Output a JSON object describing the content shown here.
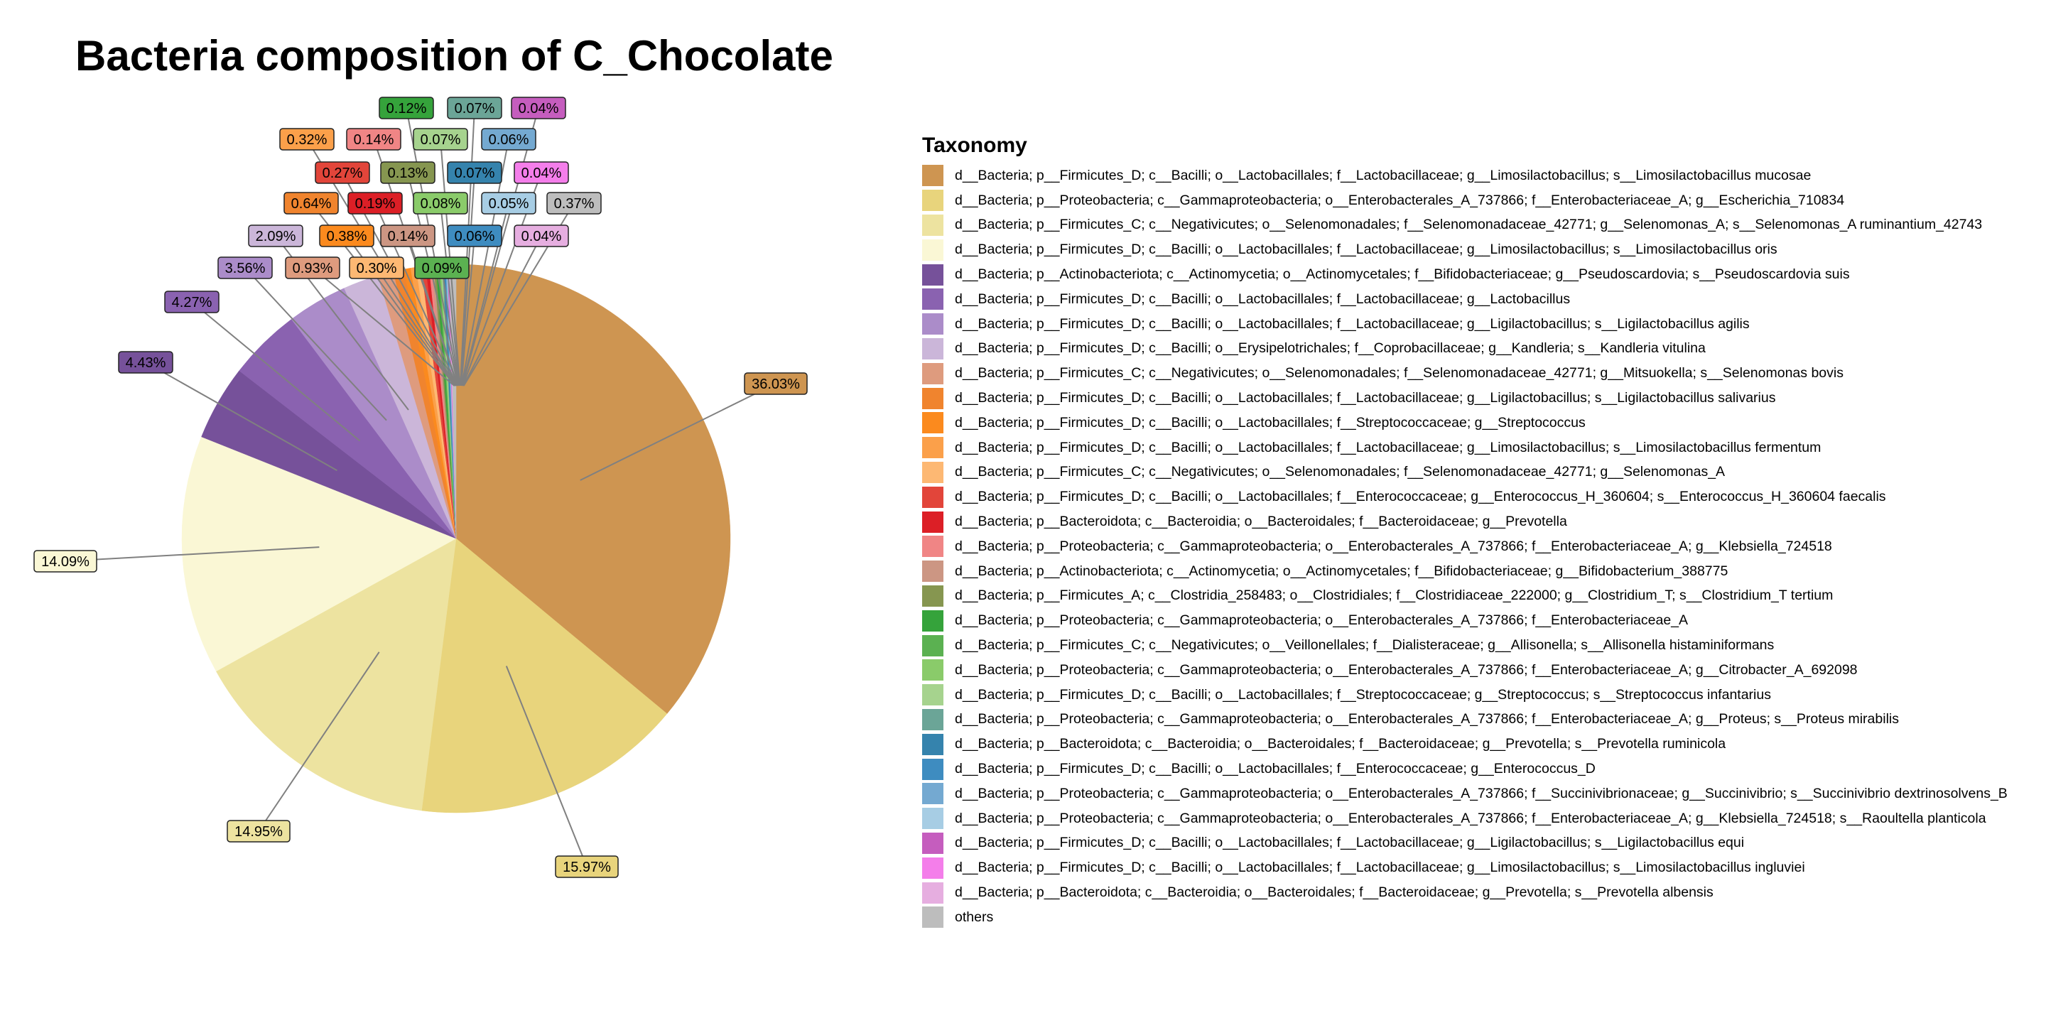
{
  "chart_data": {
    "type": "pie",
    "title": "Bacteria composition of C_Chocolate",
    "legend_title": "Taxonomy",
    "legend_position": "right",
    "slices": [
      {
        "label": "d__Bacteria; p__Firmicutes_D; c__Bacilli; o__Lactobacillales; f__Lactobacillaceae; g__Limosilactobacillus; s__Limosilactobacillus mucosae",
        "value": 36.03,
        "text": "36.03%",
        "color": "#CE9551"
      },
      {
        "label": "d__Bacteria; p__Proteobacteria; c__Gammaproteobacteria; o__Enterobacterales_A_737866; f__Enterobacteriaceae_A; g__Escherichia_710834",
        "value": 15.97,
        "text": "15.97%",
        "color": "#E8D47C"
      },
      {
        "label": "d__Bacteria; p__Firmicutes_C; c__Negativicutes; o__Selenomonadales; f__Selenomonadaceae_42771; g__Selenomonas_A; s__Selenomonas_A ruminantium_42743",
        "value": 14.95,
        "text": "14.95%",
        "color": "#EDE3A0"
      },
      {
        "label": "d__Bacteria; p__Firmicutes_D; c__Bacilli; o__Lactobacillales; f__Lactobacillaceae; g__Limosilactobacillus; s__Limosilactobacillus oris",
        "value": 14.09,
        "text": "14.09%",
        "color": "#FAF7D5"
      },
      {
        "label": "d__Bacteria; p__Actinobacteriota; c__Actinomycetia; o__Actinomycetales; f__Bifidobacteriaceae; g__Pseudoscardovia; s__Pseudoscardovia suis",
        "value": 4.43,
        "text": "4.43%",
        "color": "#76519A"
      },
      {
        "label": "d__Bacteria; p__Firmicutes_D; c__Bacilli; o__Lactobacillales; f__Lactobacillaceae; g__Lactobacillus",
        "value": 4.27,
        "text": "4.27%",
        "color": "#8A62B0"
      },
      {
        "label": "d__Bacteria; p__Firmicutes_D; c__Bacilli; o__Lactobacillales; f__Lactobacillaceae; g__Ligilactobacillus; s__Ligilactobacillus agilis",
        "value": 3.56,
        "text": "3.56%",
        "color": "#AB8CC9"
      },
      {
        "label": "d__Bacteria; p__Firmicutes_D; c__Bacilli; o__Erysipelotrichales; f__Coprobacillaceae; g__Kandleria; s__Kandleria vitulina",
        "value": 2.09,
        "text": "2.09%",
        "color": "#CBB6D9"
      },
      {
        "label": "d__Bacteria; p__Firmicutes_C; c__Negativicutes; o__Selenomonadales; f__Selenomonadaceae_42771; g__Mitsuokella; s__Selenomonas bovis",
        "value": 0.93,
        "text": "0.93%",
        "color": "#DE9B7E"
      },
      {
        "label": "d__Bacteria; p__Firmicutes_D; c__Bacilli; o__Lactobacillales; f__Lactobacillaceae; g__Ligilactobacillus; s__Ligilactobacillus salivarius",
        "value": 0.64,
        "text": "0.64%",
        "color": "#F0842E"
      },
      {
        "label": "d__Bacteria; p__Firmicutes_D; c__Bacilli; o__Lactobacillales; f__Streptococcaceae; g__Streptococcus",
        "value": 0.38,
        "text": "0.38%",
        "color": "#FB8A1E"
      },
      {
        "label": "d__Bacteria; p__Firmicutes_D; c__Bacilli; o__Lactobacillales; f__Lactobacillaceae; g__Limosilactobacillus; s__Limosilactobacillus fermentum",
        "value": 0.32,
        "text": "0.32%",
        "color": "#FBA04A"
      },
      {
        "label": "d__Bacteria; p__Firmicutes_C; c__Negativicutes; o__Selenomonadales; f__Selenomonadaceae_42771; g__Selenomonas_A",
        "value": 0.3,
        "text": "0.30%",
        "color": "#FDB873"
      },
      {
        "label": "d__Bacteria; p__Firmicutes_D; c__Bacilli; o__Lactobacillales; f__Enterococcaceae; g__Enterococcus_H_360604; s__Enterococcus_H_360604 faecalis",
        "value": 0.27,
        "text": "0.27%",
        "color": "#E2453A"
      },
      {
        "label": "d__Bacteria; p__Bacteroidota; c__Bacteroidia; o__Bacteroidales; f__Bacteroidaceae; g__Prevotella",
        "value": 0.19,
        "text": "0.19%",
        "color": "#DC1F26"
      },
      {
        "label": "d__Bacteria; p__Proteobacteria; c__Gammaproteobacteria; o__Enterobacterales_A_737866; f__Enterobacteriaceae_A; g__Klebsiella_724518",
        "value": 0.14,
        "text": "0.14%",
        "color": "#F08585"
      },
      {
        "label": "d__Bacteria; p__Actinobacteriota; c__Actinomycetia; o__Actinomycetales; f__Bifidobacteriaceae; g__Bifidobacterium_388775",
        "value": 0.14,
        "text": "0.14%",
        "color": "#CC9683"
      },
      {
        "label": "d__Bacteria; p__Firmicutes_A; c__Clostridia_258483; o__Clostridiales; f__Clostridiaceae_222000; g__Clostridium_T; s__Clostridium_T tertium",
        "value": 0.13,
        "text": "0.13%",
        "color": "#869650"
      },
      {
        "label": "d__Bacteria; p__Proteobacteria; c__Gammaproteobacteria; o__Enterobacterales_A_737866; f__Enterobacteriaceae_A",
        "value": 0.12,
        "text": "0.12%",
        "color": "#35A33B"
      },
      {
        "label": "d__Bacteria; p__Firmicutes_C; c__Negativicutes; o__Veillonellales; f__Dialisteraceae; g__Allisonella; s__Allisonella histaminiformans",
        "value": 0.09,
        "text": "0.09%",
        "color": "#5BB151"
      },
      {
        "label": "d__Bacteria; p__Proteobacteria; c__Gammaproteobacteria; o__Enterobacterales_A_737866; f__Enterobacteriaceae_A; g__Citrobacter_A_692098",
        "value": 0.08,
        "text": "0.08%",
        "color": "#8ACB6A"
      },
      {
        "label": "d__Bacteria; p__Firmicutes_D; c__Bacilli; o__Lactobacillales; f__Streptococcaceae; g__Streptococcus; s__Streptococcus infantarius",
        "value": 0.07,
        "text": "0.07%",
        "color": "#A6D38E"
      },
      {
        "label": "d__Bacteria; p__Proteobacteria; c__Gammaproteobacteria; o__Enterobacterales_A_737866; f__Enterobacteriaceae_A; g__Proteus; s__Proteus mirabilis",
        "value": 0.07,
        "text": "0.07%",
        "color": "#6BA597"
      },
      {
        "label": "d__Bacteria; p__Bacteroidota; c__Bacteroidia; o__Bacteroidales; f__Bacteroidaceae; g__Prevotella; s__Prevotella ruminicola",
        "value": 0.07,
        "text": "0.07%",
        "color": "#3583AD"
      },
      {
        "label": "d__Bacteria; p__Firmicutes_D; c__Bacilli; o__Lactobacillales; f__Enterococcaceae; g__Enterococcus_D",
        "value": 0.06,
        "text": "0.06%",
        "color": "#3E8CC0"
      },
      {
        "label": "d__Bacteria; p__Proteobacteria; c__Gammaproteobacteria; o__Enterobacterales_A_737866; f__Succinivibrionaceae; g__Succinivibrio; s__Succinivibrio dextrinosolvens_B",
        "value": 0.06,
        "text": "0.06%",
        "color": "#74A9D1"
      },
      {
        "label": "d__Bacteria; p__Proteobacteria; c__Gammaproteobacteria; o__Enterobacterales_A_737866; f__Enterobacteriaceae_A; g__Klebsiella_724518; s__Raoultella planticola",
        "value": 0.05,
        "text": "0.05%",
        "color": "#A7CDE4"
      },
      {
        "label": "d__Bacteria; p__Firmicutes_D; c__Bacilli; o__Lactobacillales; f__Lactobacillaceae; g__Ligilactobacillus; s__Ligilactobacillus equi",
        "value": 0.04,
        "text": "0.04%",
        "color": "#C55DBE"
      },
      {
        "label": "d__Bacteria; p__Firmicutes_D; c__Bacilli; o__Lactobacillales; f__Lactobacillaceae; g__Limosilactobacillus; s__Limosilactobacillus ingluviei",
        "value": 0.04,
        "text": "0.04%",
        "color": "#F47EEA"
      },
      {
        "label": "d__Bacteria; p__Bacteroidota; c__Bacteroidia; o__Bacteroidales; f__Bacteroidaceae; g__Prevotella; s__Prevotella albensis",
        "value": 0.04,
        "text": "0.04%",
        "color": "#E6AEE0"
      },
      {
        "label": "others",
        "value": 0.37,
        "text": "0.37%",
        "color": "#BDBDBD"
      }
    ]
  }
}
